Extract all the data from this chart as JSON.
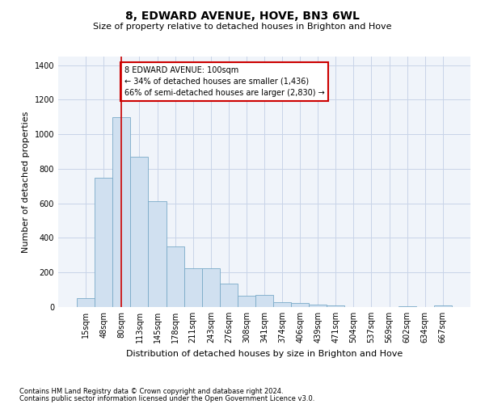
{
  "title": "8, EDWARD AVENUE, HOVE, BN3 6WL",
  "subtitle": "Size of property relative to detached houses in Brighton and Hove",
  "xlabel": "Distribution of detached houses by size in Brighton and Hove",
  "ylabel": "Number of detached properties",
  "footnote1": "Contains HM Land Registry data © Crown copyright and database right 2024.",
  "footnote2": "Contains public sector information licensed under the Open Government Licence v3.0.",
  "annotation_line1": "8 EDWARD AVENUE: 100sqm",
  "annotation_line2": "← 34% of detached houses are smaller (1,436)",
  "annotation_line3": "66% of semi-detached houses are larger (2,830) →",
  "bar_color": "#d0e0f0",
  "bar_edge_color": "#7aaac8",
  "vline_color": "#cc0000",
  "annotation_box_edge_color": "#cc0000",
  "categories": [
    "15sqm",
    "48sqm",
    "80sqm",
    "113sqm",
    "145sqm",
    "178sqm",
    "211sqm",
    "243sqm",
    "276sqm",
    "308sqm",
    "341sqm",
    "374sqm",
    "406sqm",
    "439sqm",
    "471sqm",
    "504sqm",
    "537sqm",
    "569sqm",
    "602sqm",
    "634sqm",
    "667sqm"
  ],
  "values": [
    50,
    750,
    1100,
    870,
    615,
    350,
    225,
    225,
    135,
    65,
    70,
    30,
    22,
    14,
    10,
    2,
    0,
    0,
    5,
    0,
    10
  ],
  "ylim": [
    0,
    1450
  ],
  "vline_x_index": 2.0,
  "figsize": [
    6.0,
    5.0
  ],
  "dpi": 100,
  "bg_color": "#ffffff",
  "plot_bg_color": "#f0f4fa",
  "grid_color": "#c8d4e8",
  "title_fontsize": 10,
  "subtitle_fontsize": 8,
  "ylabel_fontsize": 8,
  "xlabel_fontsize": 8,
  "tick_fontsize": 7,
  "footnote_fontsize": 6
}
